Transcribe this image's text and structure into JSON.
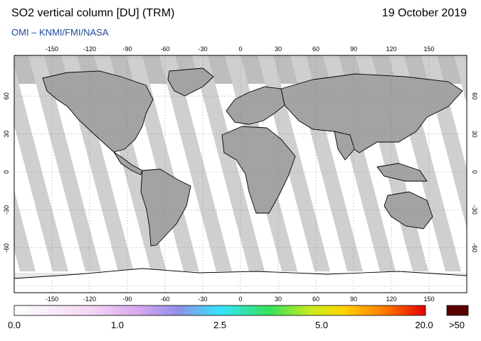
{
  "title": "SO2 vertical column [DU] (TRM)",
  "date": "19 October 2019",
  "credit": "OMI  –  KNMI/FMI/NASA",
  "map": {
    "lon_ticks": [
      "-150",
      "-120",
      "-90",
      "-60",
      "-30",
      "0",
      "30",
      "60",
      "90",
      "120",
      "150"
    ],
    "lat_ticks": [
      "60",
      "30",
      "0",
      "-30",
      "-60"
    ],
    "background": "#ffffff",
    "swath_color": "#cfcfcf",
    "land_color": "#a0a0a0",
    "nodata_color": "#bdbdbd"
  },
  "colorbar": {
    "labels": [
      "0.0",
      "1.0",
      "2.5",
      "5.0",
      "20.0"
    ],
    "overflow_label": ">50",
    "overflow_color": "#5a0000"
  }
}
